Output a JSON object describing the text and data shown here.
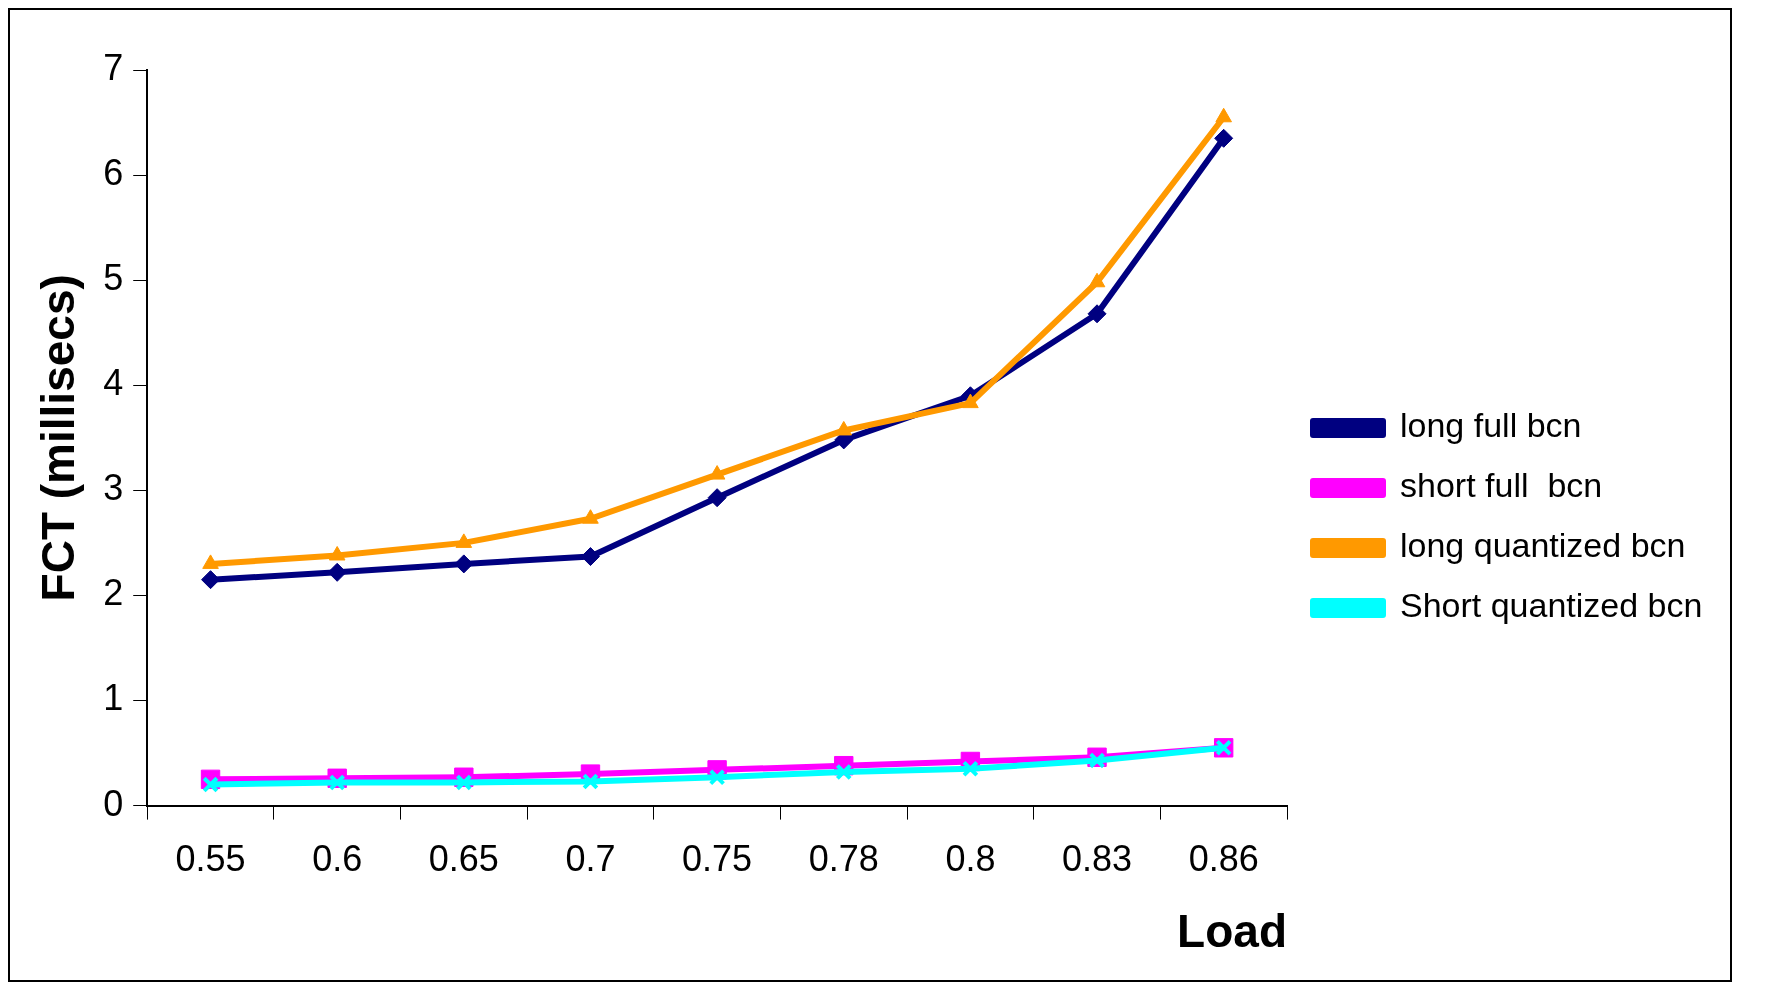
{
  "chart_data": {
    "type": "line",
    "xlabel": "Load",
    "ylabel": "FCT (millisecs)",
    "categories": [
      "0.55",
      "0.6",
      "0.65",
      "0.7",
      "0.75",
      "0.78",
      "0.8",
      "0.83",
      "0.86"
    ],
    "ylim": [
      0,
      7
    ],
    "yticks": [
      0,
      1,
      2,
      3,
      4,
      5,
      6,
      7
    ],
    "grid": false,
    "legend": "right",
    "line_style": "solid",
    "series": [
      {
        "name": "long full bcn",
        "color": "#000080",
        "marker": "diamond",
        "values": [
          2.15,
          2.22,
          2.3,
          2.37,
          2.93,
          3.48,
          3.9,
          4.68,
          6.35
        ]
      },
      {
        "name": "short full  bcn",
        "color": "#ff00ff",
        "marker": "square",
        "values": [
          0.25,
          0.26,
          0.27,
          0.3,
          0.34,
          0.38,
          0.42,
          0.46,
          0.55
        ]
      },
      {
        "name": "long quantized bcn",
        "color": "#ff9900",
        "marker": "triangle",
        "values": [
          2.3,
          2.38,
          2.5,
          2.73,
          3.15,
          3.57,
          3.83,
          4.98,
          6.55
        ]
      },
      {
        "name": "Short quantized bcn",
        "color": "#00ffff",
        "marker": "cross",
        "values": [
          0.2,
          0.22,
          0.22,
          0.23,
          0.27,
          0.32,
          0.35,
          0.43,
          0.55
        ]
      }
    ]
  }
}
